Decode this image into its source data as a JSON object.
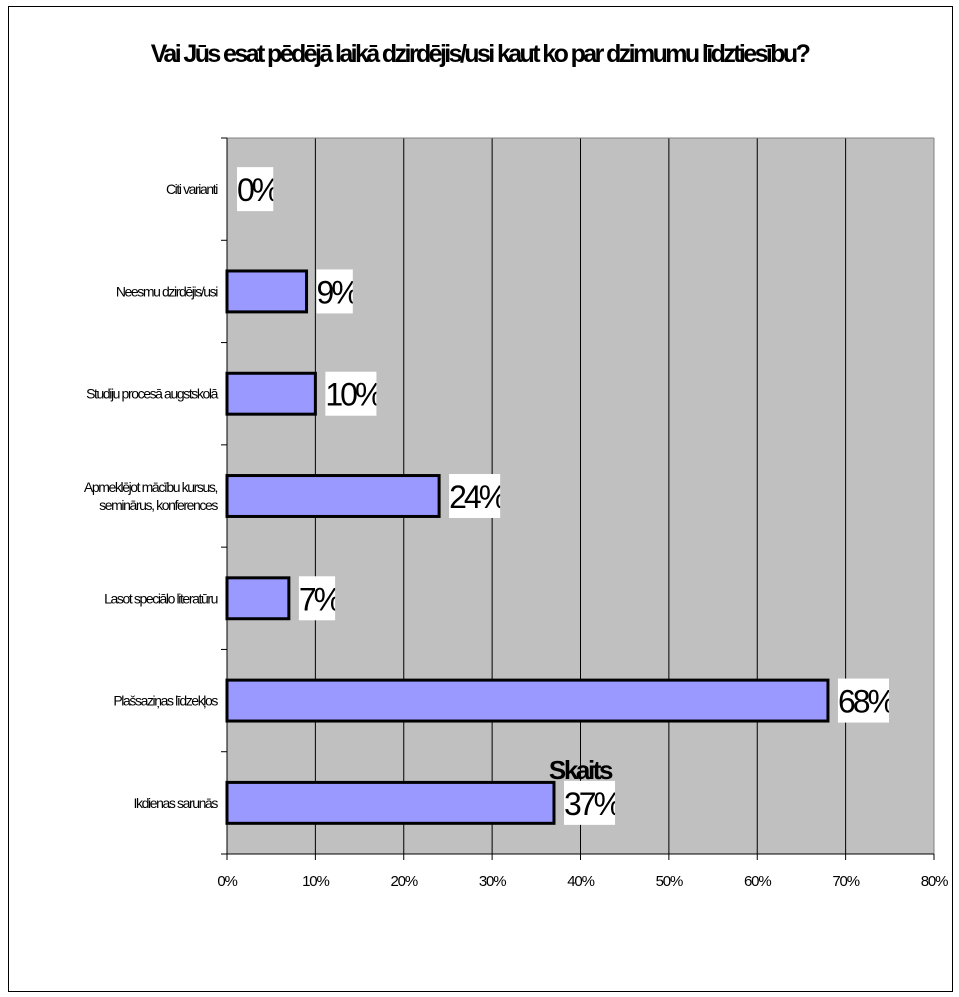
{
  "chart_data": {
    "type": "bar",
    "orientation": "horizontal",
    "title": "Vai Jūs esat pēdējā laikā dzirdējis/usi kaut ko par dzimumu līdztiesību?",
    "xlabel": "Skaits",
    "ylabel": "",
    "xlim": [
      0,
      80
    ],
    "x_ticks": [
      "0%",
      "10%",
      "20%",
      "30%",
      "40%",
      "50%",
      "60%",
      "70%",
      "80%"
    ],
    "grid": "vertical",
    "legend": "none",
    "bar_color": "#9999ff",
    "plot_background": "#c0c0c0",
    "categories": [
      [
        "Citi varianti"
      ],
      [
        "Neesmu dzirdējis/usi"
      ],
      [
        "Studiju procesā augstskolā"
      ],
      [
        "Apmeklējot mācību kursus,",
        "seminārus, konferences"
      ],
      [
        "Lasot speciālo literatūru"
      ],
      [
        "Plašsaziņas līdzekļos"
      ],
      [
        "Ikdienas sarunās"
      ]
    ],
    "values": [
      0,
      9,
      10,
      24,
      7,
      68,
      37
    ],
    "data_labels": [
      "0%",
      "9%",
      "10%",
      "24%",
      "7%",
      "68%",
      "37%"
    ]
  }
}
